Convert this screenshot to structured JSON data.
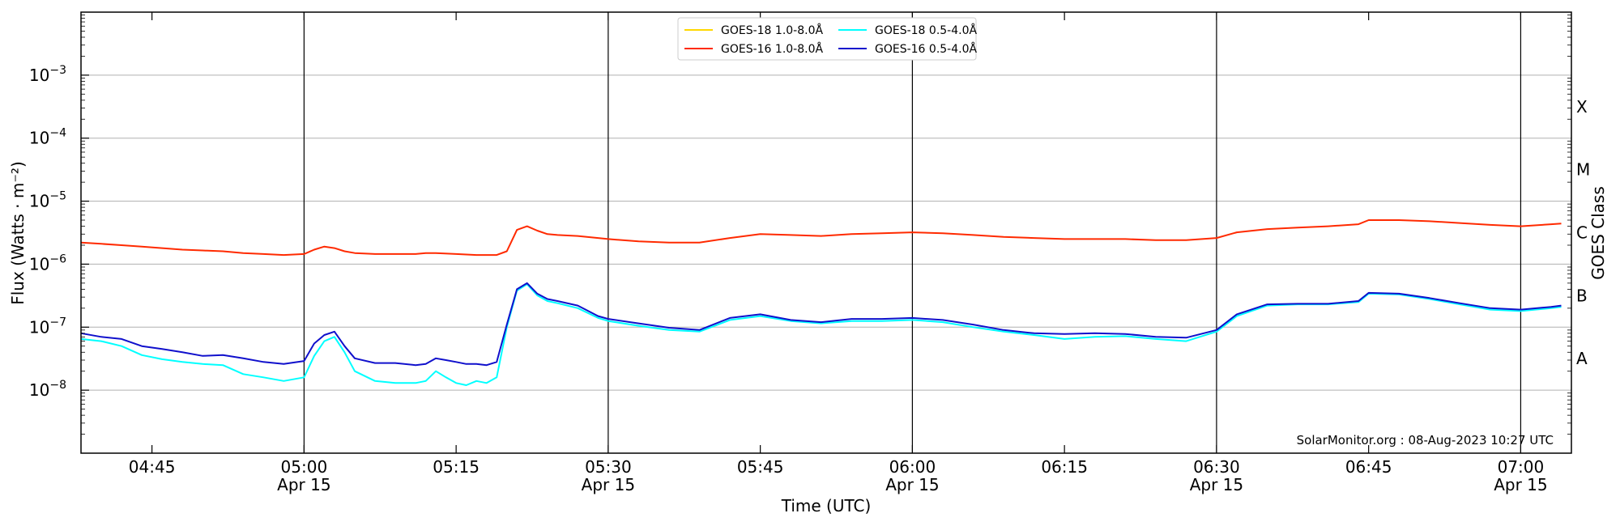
{
  "chart_data": {
    "type": "line",
    "xlabel": "Time (UTC)",
    "ylabel": "Flux (Watts · m⁻²)",
    "ylabel_right": "GOES Class",
    "y_scale": "log",
    "ylim": [
      1e-09,
      0.01
    ],
    "xlim": [
      "04:38",
      "07:05"
    ],
    "grid": "horizontal",
    "legend_position": "top-center",
    "credit": "SolarMonitor.org : 08-Aug-2023 10:27 UTC",
    "x_ticks": [
      {
        "time": "04:45",
        "label": "04:45",
        "sub": ""
      },
      {
        "time": "05:00",
        "label": "05:00",
        "sub": "Apr 15"
      },
      {
        "time": "05:15",
        "label": "05:15",
        "sub": ""
      },
      {
        "time": "05:30",
        "label": "05:30",
        "sub": "Apr 15"
      },
      {
        "time": "05:45",
        "label": "05:45",
        "sub": ""
      },
      {
        "time": "06:00",
        "label": "06:00",
        "sub": "Apr 15"
      },
      {
        "time": "06:15",
        "label": "06:15",
        "sub": ""
      },
      {
        "time": "06:30",
        "label": "06:30",
        "sub": "Apr 15"
      },
      {
        "time": "06:45",
        "label": "06:45",
        "sub": ""
      },
      {
        "time": "07:00",
        "label": "07:00",
        "sub": "Apr 15"
      }
    ],
    "y_ticks": [
      {
        "exp": -8,
        "label": "10",
        "sup": "−8"
      },
      {
        "exp": -7,
        "label": "10",
        "sup": "−7"
      },
      {
        "exp": -6,
        "label": "10",
        "sup": "−6"
      },
      {
        "exp": -5,
        "label": "10",
        "sup": "−5"
      },
      {
        "exp": -4,
        "label": "10",
        "sup": "−4"
      },
      {
        "exp": -3,
        "label": "10",
        "sup": "−3"
      }
    ],
    "vlines": [
      "05:00",
      "05:30",
      "06:00",
      "06:30",
      "07:00"
    ],
    "goes_classes": [
      {
        "label": "A",
        "exp": -7.5
      },
      {
        "label": "B",
        "exp": -6.5
      },
      {
        "label": "C",
        "exp": -5.5
      },
      {
        "label": "M",
        "exp": -4.5
      },
      {
        "label": "X",
        "exp": -3.5
      }
    ],
    "series": [
      {
        "name": "GOES-18 1.0-8.0Å",
        "color": "#ffd700",
        "x": [],
        "y": []
      },
      {
        "name": "GOES-18 0.5-4.0Å",
        "color": "#00ffff",
        "x": [
          "04:38",
          "04:40",
          "04:42",
          "04:44",
          "04:46",
          "04:48",
          "04:50",
          "04:52",
          "04:54",
          "04:56",
          "04:58",
          "05:00",
          "05:01",
          "05:02",
          "05:03",
          "05:04",
          "05:05",
          "05:07",
          "05:09",
          "05:11",
          "05:12",
          "05:13",
          "05:14",
          "05:15",
          "05:16",
          "05:17",
          "05:18",
          "05:19",
          "05:20",
          "05:21",
          "05:22",
          "05:23",
          "05:24",
          "05:25",
          "05:27",
          "05:29",
          "05:30",
          "05:33",
          "05:36",
          "05:39",
          "05:42",
          "05:45",
          "05:48",
          "05:51",
          "05:54",
          "05:57",
          "06:00",
          "06:03",
          "06:06",
          "06:09",
          "06:12",
          "06:15",
          "06:18",
          "06:21",
          "06:24",
          "06:27",
          "06:30",
          "06:32",
          "06:35",
          "06:38",
          "06:41",
          "06:44",
          "06:45",
          "06:48",
          "06:51",
          "06:54",
          "06:57",
          "07:00",
          "07:03",
          "07:04"
        ],
        "y": [
          6.5e-08,
          6e-08,
          5e-08,
          3.6e-08,
          3.1e-08,
          2.8e-08,
          2.6e-08,
          2.5e-08,
          1.8e-08,
          1.6e-08,
          1.4e-08,
          1.6e-08,
          3.5e-08,
          6e-08,
          7e-08,
          4e-08,
          2e-08,
          1.4e-08,
          1.3e-08,
          1.3e-08,
          1.4e-08,
          2e-08,
          1.6e-08,
          1.3e-08,
          1.2e-08,
          1.4e-08,
          1.3e-08,
          1.6e-08,
          1e-07,
          3.8e-07,
          4.8e-07,
          3.2e-07,
          2.6e-07,
          2.4e-07,
          2e-07,
          1.4e-07,
          1.25e-07,
          1.05e-07,
          9e-08,
          8.5e-08,
          1.3e-07,
          1.5e-07,
          1.25e-07,
          1.15e-07,
          1.25e-07,
          1.25e-07,
          1.3e-07,
          1.2e-07,
          1e-07,
          8.5e-08,
          7.5e-08,
          6.5e-08,
          7e-08,
          7.2e-08,
          6.5e-08,
          6e-08,
          8.5e-08,
          1.5e-07,
          2.2e-07,
          2.3e-07,
          2.3e-07,
          2.5e-07,
          3.4e-07,
          3.3e-07,
          2.8e-07,
          2.3e-07,
          1.9e-07,
          1.8e-07,
          2e-07,
          2.1e-07
        ]
      },
      {
        "name": "GOES-16 1.0-8.0Å",
        "color": "#ff2a00",
        "x": [
          "04:38",
          "04:40",
          "04:42",
          "04:44",
          "04:46",
          "04:48",
          "04:50",
          "04:52",
          "04:54",
          "04:56",
          "04:58",
          "05:00",
          "05:01",
          "05:02",
          "05:03",
          "05:04",
          "05:05",
          "05:07",
          "05:09",
          "05:11",
          "05:12",
          "05:13",
          "05:15",
          "05:17",
          "05:19",
          "05:20",
          "05:21",
          "05:22",
          "05:23",
          "05:24",
          "05:25",
          "05:27",
          "05:30",
          "05:33",
          "05:36",
          "05:39",
          "05:42",
          "05:45",
          "05:48",
          "05:51",
          "05:54",
          "05:57",
          "06:00",
          "06:03",
          "06:06",
          "06:09",
          "06:12",
          "06:15",
          "06:18",
          "06:21",
          "06:24",
          "06:27",
          "06:30",
          "06:32",
          "06:35",
          "06:38",
          "06:41",
          "06:44",
          "06:45",
          "06:48",
          "06:51",
          "06:54",
          "06:57",
          "07:00",
          "07:03",
          "07:04"
        ],
        "y": [
          2.2e-06,
          2.1e-06,
          2e-06,
          1.9e-06,
          1.8e-06,
          1.7e-06,
          1.65e-06,
          1.6e-06,
          1.5e-06,
          1.45e-06,
          1.4e-06,
          1.45e-06,
          1.7e-06,
          1.9e-06,
          1.8e-06,
          1.6e-06,
          1.5e-06,
          1.45e-06,
          1.45e-06,
          1.45e-06,
          1.5e-06,
          1.5e-06,
          1.45e-06,
          1.4e-06,
          1.4e-06,
          1.6e-06,
          3.5e-06,
          4e-06,
          3.4e-06,
          3e-06,
          2.9e-06,
          2.8e-06,
          2.5e-06,
          2.3e-06,
          2.2e-06,
          2.2e-06,
          2.6e-06,
          3e-06,
          2.9e-06,
          2.8e-06,
          3e-06,
          3.1e-06,
          3.2e-06,
          3.1e-06,
          2.9e-06,
          2.7e-06,
          2.6e-06,
          2.5e-06,
          2.5e-06,
          2.5e-06,
          2.4e-06,
          2.4e-06,
          2.6e-06,
          3.2e-06,
          3.6e-06,
          3.8e-06,
          4e-06,
          4.3e-06,
          5e-06,
          5e-06,
          4.8e-06,
          4.5e-06,
          4.2e-06,
          4e-06,
          4.3e-06,
          4.4e-06
        ]
      },
      {
        "name": "GOES-16 0.5-4.0Å",
        "color": "#1010cc",
        "x": [
          "04:38",
          "04:40",
          "04:42",
          "04:44",
          "04:46",
          "04:48",
          "04:50",
          "04:52",
          "04:54",
          "04:56",
          "04:58",
          "05:00",
          "05:01",
          "05:02",
          "05:03",
          "05:04",
          "05:05",
          "05:07",
          "05:09",
          "05:11",
          "05:12",
          "05:13",
          "05:14",
          "05:15",
          "05:16",
          "05:17",
          "05:18",
          "05:19",
          "05:20",
          "05:21",
          "05:22",
          "05:23",
          "05:24",
          "05:25",
          "05:27",
          "05:29",
          "05:30",
          "05:33",
          "05:36",
          "05:39",
          "05:42",
          "05:45",
          "05:48",
          "05:51",
          "05:54",
          "05:57",
          "06:00",
          "06:03",
          "06:06",
          "06:09",
          "06:12",
          "06:15",
          "06:18",
          "06:21",
          "06:24",
          "06:27",
          "06:30",
          "06:32",
          "06:35",
          "06:38",
          "06:41",
          "06:44",
          "06:45",
          "06:48",
          "06:51",
          "06:54",
          "06:57",
          "07:00",
          "07:03",
          "07:04"
        ],
        "y": [
          8e-08,
          7e-08,
          6.5e-08,
          5e-08,
          4.5e-08,
          4e-08,
          3.5e-08,
          3.6e-08,
          3.2e-08,
          2.8e-08,
          2.6e-08,
          2.9e-08,
          5.5e-08,
          7.5e-08,
          8.5e-08,
          5e-08,
          3.2e-08,
          2.7e-08,
          2.7e-08,
          2.5e-08,
          2.6e-08,
          3.2e-08,
          3e-08,
          2.8e-08,
          2.6e-08,
          2.6e-08,
          2.5e-08,
          2.8e-08,
          1.1e-07,
          4e-07,
          5e-07,
          3.4e-07,
          2.8e-07,
          2.6e-07,
          2.2e-07,
          1.5e-07,
          1.35e-07,
          1.15e-07,
          9.8e-08,
          9e-08,
          1.4e-07,
          1.6e-07,
          1.3e-07,
          1.2e-07,
          1.35e-07,
          1.35e-07,
          1.4e-07,
          1.3e-07,
          1.1e-07,
          9e-08,
          8e-08,
          7.8e-08,
          8e-08,
          7.8e-08,
          7e-08,
          6.8e-08,
          9e-08,
          1.6e-07,
          2.3e-07,
          2.35e-07,
          2.35e-07,
          2.6e-07,
          3.5e-07,
          3.4e-07,
          2.9e-07,
          2.4e-07,
          2e-07,
          1.9e-07,
          2.1e-07,
          2.2e-07
        ]
      }
    ]
  }
}
